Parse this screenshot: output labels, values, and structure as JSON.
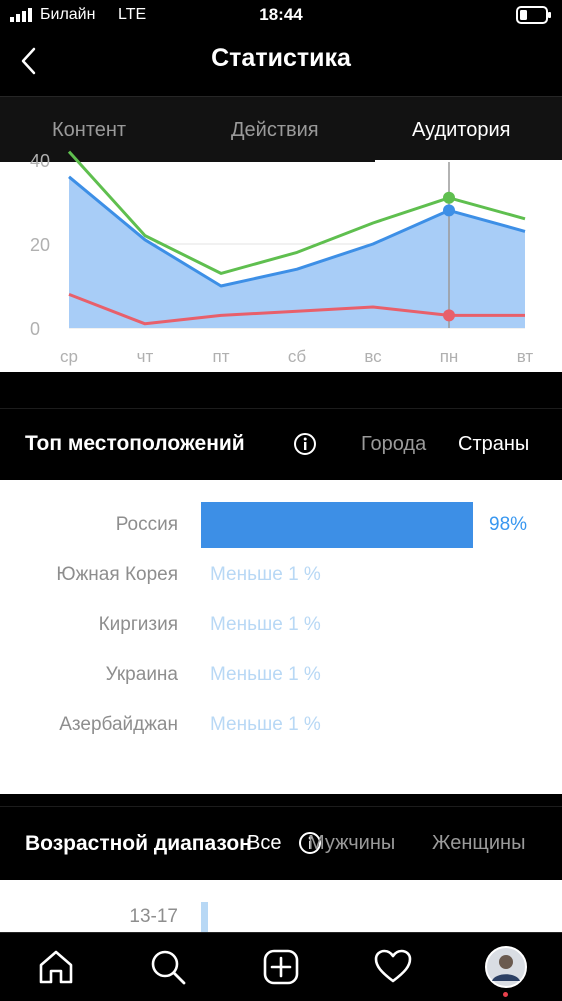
{
  "status_bar": {
    "carrier": "Билайн",
    "network": "LTE",
    "time": "18:44"
  },
  "header": {
    "title": "Статистика"
  },
  "tabs": [
    {
      "label": "Контент"
    },
    {
      "label": "Действия"
    },
    {
      "label": "Аудитория"
    }
  ],
  "chart_data": {
    "type": "area",
    "categories": [
      "ср",
      "чт",
      "пт",
      "сб",
      "вс",
      "пн",
      "вт"
    ],
    "y_ticks": [
      "40",
      "20",
      "0"
    ],
    "ylim": [
      0,
      40
    ],
    "series": [
      {
        "color": "#5fbf4f",
        "values": [
          42,
          22,
          13,
          18,
          25,
          31,
          26
        ]
      },
      {
        "color": "#3d8fe6",
        "values": [
          36,
          21,
          10,
          14,
          20,
          28,
          23
        ]
      },
      {
        "color": "#e8606b",
        "values": [
          8,
          1,
          3,
          4,
          5,
          3,
          3
        ]
      }
    ],
    "selected_category": "пн"
  },
  "locations": {
    "title": "Топ местоположений",
    "filter_cities": "Города",
    "filter_countries": "Страны",
    "items": [
      {
        "name": "Россия",
        "value": "98%",
        "share": 98
      },
      {
        "name": "Южная Корея",
        "value": "Меньше 1 %"
      },
      {
        "name": "Киргизия",
        "value": "Меньше 1 %"
      },
      {
        "name": "Украина",
        "value": "Меньше 1 %"
      },
      {
        "name": "Азербайджан",
        "value": "Меньше 1 %"
      }
    ]
  },
  "age": {
    "title": "Возрастной диапазон",
    "filter_all": "Все",
    "filter_men": "Мужчины",
    "filter_women": "Женщины",
    "first_range": "13-17"
  },
  "colors": {
    "accent": "#3897f0",
    "bar": "#3d8fe6"
  },
  "icons": [
    "home-icon",
    "search-icon",
    "add-post-icon",
    "heart-icon",
    "profile-avatar"
  ]
}
